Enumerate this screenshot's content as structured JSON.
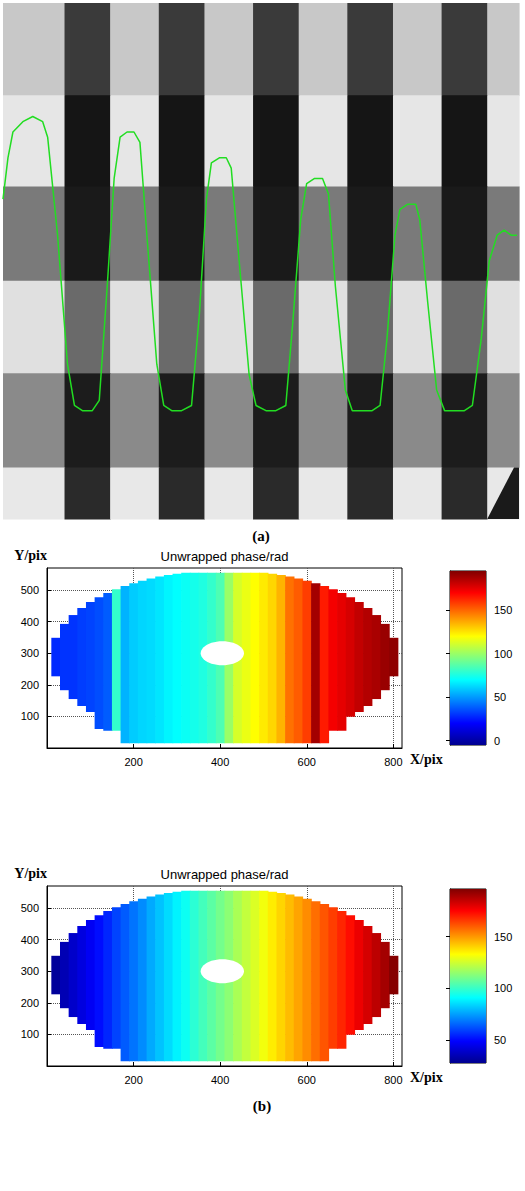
{
  "chart_data": [
    {
      "type": "line",
      "panel": "(a)",
      "x": [
        0,
        5,
        10,
        20,
        30,
        40,
        45,
        55,
        65,
        72,
        80,
        90,
        97,
        105,
        112,
        118,
        125,
        132,
        138,
        145,
        155,
        162,
        170,
        180,
        190,
        198,
        205,
        210,
        218,
        225,
        230,
        238,
        248,
        255,
        265,
        275,
        285,
        292,
        300,
        306,
        314,
        322,
        328,
        335,
        345,
        352,
        362,
        372,
        380,
        387,
        395,
        400,
        408,
        416,
        420,
        428,
        437,
        445,
        455,
        465,
        473,
        482,
        490,
        498,
        505,
        512,
        518
      ],
      "values": [
        62,
        70,
        75,
        77,
        78,
        77,
        74,
        55,
        30,
        22,
        21,
        21,
        23,
        45,
        66,
        74,
        75,
        75,
        73,
        55,
        30,
        22,
        21,
        21,
        22,
        40,
        62,
        69,
        70,
        70,
        68,
        50,
        28,
        22,
        21,
        21,
        22,
        38,
        58,
        65,
        66,
        66,
        63,
        45,
        25,
        21,
        21,
        21,
        22,
        35,
        55,
        60,
        61,
        61,
        58,
        42,
        25,
        21,
        21,
        21,
        22,
        35,
        50,
        55,
        56,
        55,
        55
      ],
      "color": "#22dd22",
      "xlim": [
        0,
        520
      ],
      "ylim": [
        0,
        100
      ],
      "tick_labels": false,
      "grid": false
    },
    {
      "type": "heatmap",
      "title": "Unwrapped phase/rad",
      "xlabel": "X/pix",
      "ylabel": "Y/pix",
      "x": [
        20,
        40,
        60,
        80,
        100,
        120,
        140,
        160,
        180,
        200,
        220,
        240,
        260,
        280,
        300,
        320,
        340,
        360,
        380,
        400,
        420,
        440,
        460,
        480,
        500,
        520,
        540,
        560,
        580,
        600,
        620,
        640,
        660,
        680,
        700,
        720,
        740,
        760,
        780,
        800
      ],
      "y_min": [
        227,
        183,
        155,
        133,
        114,
        60,
        55,
        55,
        15,
        15,
        15,
        15,
        15,
        15,
        15,
        15,
        15,
        15,
        15,
        15,
        15,
        15,
        15,
        15,
        15,
        15,
        15,
        15,
        15,
        15,
        15,
        15,
        55,
        55,
        99,
        114,
        133,
        155,
        183,
        227
      ],
      "y_max": [
        349,
        393,
        421,
        443,
        462,
        477,
        491,
        503,
        513,
        522,
        530,
        537,
        543,
        548,
        552,
        555,
        555,
        555,
        555,
        555,
        555,
        555,
        555,
        555,
        555,
        552,
        548,
        543,
        537,
        530,
        522,
        513,
        503,
        491,
        477,
        462,
        443,
        421,
        393,
        349
      ],
      "values": [
        28,
        30,
        30,
        32,
        33,
        35,
        38,
        80,
        55,
        60,
        62,
        63,
        65,
        68,
        70,
        72,
        74,
        76,
        80,
        85,
        100,
        112,
        116,
        120,
        124,
        128,
        135,
        148,
        152,
        158,
        188,
        165,
        172,
        175,
        178,
        182,
        185,
        187,
        190,
        192
      ],
      "hole": {
        "x": [
          355,
          455
        ],
        "y": [
          262,
          338
        ]
      },
      "xlim": [
        0,
        820
      ],
      "ylim": [
        0,
        570
      ],
      "xticks": [
        200,
        400,
        600,
        800
      ],
      "yticks": [
        100,
        200,
        300,
        400,
        500
      ],
      "colorbar_range": [
        -5,
        195
      ],
      "colorbar_ticks": [
        0,
        50,
        100,
        150
      ],
      "grid": true
    },
    {
      "type": "heatmap",
      "title": "Unwrapped phase/rad",
      "xlabel": "X/pix",
      "ylabel": "Y/pix",
      "panel": "(b)",
      "x": [
        20,
        40,
        60,
        80,
        100,
        120,
        140,
        160,
        180,
        200,
        220,
        240,
        260,
        280,
        300,
        320,
        340,
        360,
        380,
        400,
        420,
        440,
        460,
        480,
        500,
        520,
        540,
        560,
        580,
        600,
        620,
        640,
        660,
        680,
        700,
        720,
        740,
        760,
        780,
        800
      ],
      "y_min": [
        227,
        183,
        155,
        133,
        114,
        60,
        55,
        55,
        15,
        15,
        15,
        15,
        15,
        15,
        15,
        15,
        15,
        15,
        15,
        15,
        15,
        15,
        15,
        15,
        15,
        15,
        15,
        15,
        15,
        15,
        15,
        15,
        55,
        55,
        99,
        114,
        133,
        155,
        183,
        227
      ],
      "y_max": [
        349,
        393,
        421,
        443,
        462,
        477,
        491,
        503,
        513,
        522,
        530,
        537,
        543,
        548,
        552,
        555,
        555,
        555,
        555,
        555,
        555,
        555,
        555,
        555,
        555,
        552,
        548,
        543,
        537,
        530,
        522,
        513,
        503,
        491,
        477,
        462,
        443,
        421,
        393,
        349
      ],
      "values": [
        30,
        35,
        39,
        43,
        47,
        51,
        55,
        60,
        64,
        68,
        72,
        77,
        81,
        85,
        89,
        93,
        98,
        102,
        106,
        110,
        114,
        119,
        123,
        127,
        131,
        136,
        140,
        144,
        148,
        152,
        157,
        161,
        165,
        169,
        173,
        178,
        182,
        186,
        190,
        195
      ],
      "hole": {
        "x": [
          355,
          455
        ],
        "y": [
          262,
          338
        ]
      },
      "xlim": [
        0,
        820
      ],
      "ylim": [
        0,
        570
      ],
      "xticks": [
        200,
        400,
        600,
        800
      ],
      "yticks": [
        100,
        200,
        300,
        400,
        500
      ],
      "colorbar_range": [
        28,
        196
      ],
      "colorbar_ticks": [
        50,
        100,
        150
      ],
      "grid": true
    }
  ]
}
